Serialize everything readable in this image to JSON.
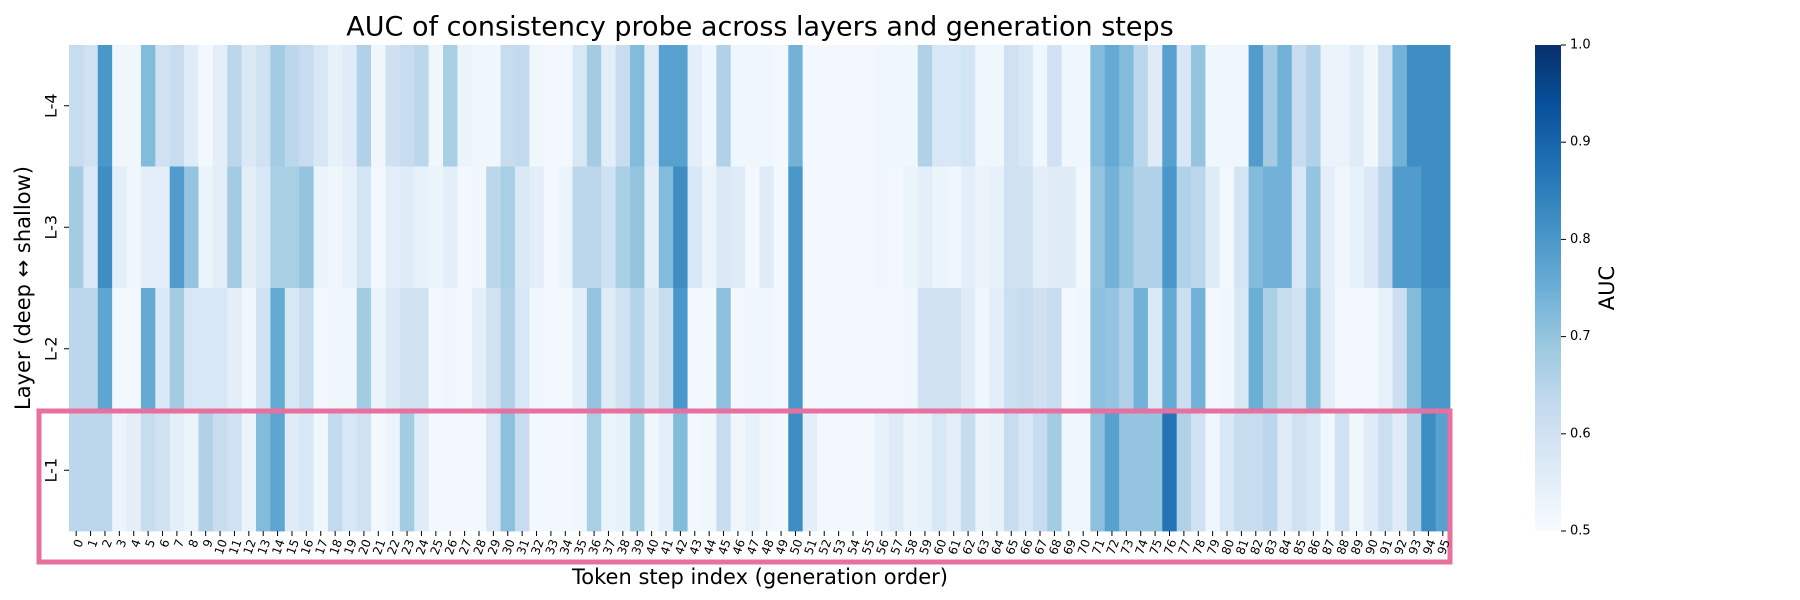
{
  "chart_data": {
    "type": "heatmap",
    "title": "AUC of consistency probe across layers and generation steps",
    "xlabel": "Token step index (generation order)",
    "ylabel": "Layer (deep ↔ shallow)",
    "colorbar_label": "AUC",
    "colormap": "Blues",
    "clim": [
      0.5,
      1.0
    ],
    "cticks": [
      0.5,
      0.6,
      0.7,
      0.8,
      0.9,
      {
        "value": 1,
        "label": "1.0"
      }
    ],
    "x_categories": [
      "0",
      "1",
      "2",
      "3",
      "4",
      "5",
      "6",
      "7",
      "8",
      "9",
      "10",
      "11",
      "12",
      "13",
      "14",
      "15",
      "16",
      "17",
      "18",
      "19",
      "20",
      "21",
      "22",
      "23",
      "24",
      "25",
      "26",
      "27",
      "28",
      "29",
      "30",
      "31",
      "32",
      "33",
      "34",
      "35",
      "36",
      "37",
      "38",
      "39",
      "40",
      "41",
      "42",
      "43",
      "44",
      "45",
      "46",
      "47",
      "48",
      "49",
      "50",
      "51",
      "52",
      "53",
      "54",
      "55",
      "56",
      "57",
      "58",
      "59",
      "60",
      "61",
      "62",
      "63",
      "64",
      "65",
      "66",
      "67",
      "68",
      "69",
      "70",
      "71",
      "72",
      "73",
      "74",
      "75",
      "76",
      "77",
      "78",
      "79",
      "80",
      "81",
      "82",
      "83",
      "84",
      "85",
      "86",
      "87",
      "88",
      "89",
      "90",
      "91",
      "92",
      "93",
      "94",
      "95"
    ],
    "y_categories": [
      "L-4",
      "L-3",
      "L-2",
      "L-1"
    ],
    "values": [
      [
        0.62,
        0.6,
        0.8,
        0.52,
        0.52,
        0.72,
        0.6,
        0.62,
        0.56,
        0.51,
        0.55,
        0.64,
        0.57,
        0.6,
        0.68,
        0.64,
        0.62,
        0.58,
        0.54,
        0.56,
        0.66,
        0.52,
        0.6,
        0.62,
        0.64,
        0.52,
        0.67,
        0.53,
        0.52,
        0.52,
        0.62,
        0.63,
        0.52,
        0.51,
        0.51,
        0.58,
        0.68,
        0.55,
        0.62,
        0.72,
        0.56,
        0.78,
        0.78,
        0.55,
        0.52,
        0.66,
        0.52,
        0.52,
        0.52,
        0.51,
        0.74,
        0.51,
        0.51,
        0.51,
        0.51,
        0.51,
        0.52,
        0.52,
        0.52,
        0.66,
        0.58,
        0.58,
        0.59,
        0.52,
        0.52,
        0.6,
        0.58,
        0.52,
        0.6,
        0.52,
        0.52,
        0.72,
        0.76,
        0.72,
        0.64,
        0.56,
        0.78,
        0.58,
        0.7,
        0.52,
        0.52,
        0.52,
        0.79,
        0.68,
        0.74,
        0.62,
        0.66,
        0.53,
        0.53,
        0.56,
        0.52,
        0.6,
        0.74,
        0.82,
        0.82,
        0.82
      ],
      [
        0.68,
        0.57,
        0.82,
        0.55,
        0.52,
        0.55,
        0.55,
        0.79,
        0.7,
        0.53,
        0.55,
        0.68,
        0.55,
        0.58,
        0.67,
        0.67,
        0.7,
        0.53,
        0.52,
        0.54,
        0.59,
        0.51,
        0.55,
        0.56,
        0.54,
        0.53,
        0.55,
        0.51,
        0.52,
        0.64,
        0.67,
        0.57,
        0.55,
        0.51,
        0.53,
        0.64,
        0.64,
        0.6,
        0.67,
        0.7,
        0.55,
        0.72,
        0.82,
        0.58,
        0.53,
        0.57,
        0.56,
        0.51,
        0.56,
        0.51,
        0.8,
        0.51,
        0.51,
        0.51,
        0.51,
        0.51,
        0.52,
        0.51,
        0.53,
        0.55,
        0.53,
        0.52,
        0.55,
        0.53,
        0.54,
        0.6,
        0.6,
        0.55,
        0.56,
        0.56,
        0.51,
        0.7,
        0.74,
        0.7,
        0.66,
        0.66,
        0.8,
        0.66,
        0.64,
        0.56,
        0.51,
        0.59,
        0.72,
        0.74,
        0.74,
        0.58,
        0.7,
        0.55,
        0.52,
        0.54,
        0.57,
        0.64,
        0.79,
        0.79,
        0.82,
        0.82
      ],
      [
        0.64,
        0.64,
        0.77,
        0.51,
        0.51,
        0.76,
        0.57,
        0.68,
        0.58,
        0.58,
        0.58,
        0.55,
        0.52,
        0.6,
        0.76,
        0.58,
        0.62,
        0.51,
        0.52,
        0.52,
        0.68,
        0.53,
        0.57,
        0.6,
        0.6,
        0.51,
        0.52,
        0.51,
        0.55,
        0.6,
        0.66,
        0.58,
        0.52,
        0.51,
        0.51,
        0.55,
        0.7,
        0.56,
        0.6,
        0.65,
        0.57,
        0.62,
        0.8,
        0.51,
        0.51,
        0.71,
        0.51,
        0.52,
        0.52,
        0.51,
        0.8,
        0.51,
        0.51,
        0.51,
        0.51,
        0.51,
        0.51,
        0.51,
        0.52,
        0.6,
        0.6,
        0.6,
        0.56,
        0.52,
        0.55,
        0.61,
        0.62,
        0.6,
        0.62,
        0.51,
        0.52,
        0.71,
        0.7,
        0.66,
        0.74,
        0.57,
        0.76,
        0.61,
        0.74,
        0.51,
        0.52,
        0.58,
        0.75,
        0.67,
        0.62,
        0.6,
        0.72,
        0.55,
        0.51,
        0.51,
        0.51,
        0.54,
        0.61,
        0.72,
        0.8,
        0.8
      ],
      [
        0.64,
        0.64,
        0.64,
        0.53,
        0.55,
        0.62,
        0.6,
        0.55,
        0.53,
        0.66,
        0.62,
        0.6,
        0.53,
        0.72,
        0.77,
        0.56,
        0.58,
        0.52,
        0.63,
        0.58,
        0.6,
        0.51,
        0.53,
        0.68,
        0.56,
        0.51,
        0.51,
        0.51,
        0.51,
        0.58,
        0.71,
        0.62,
        0.51,
        0.51,
        0.51,
        0.52,
        0.67,
        0.53,
        0.54,
        0.68,
        0.52,
        0.55,
        0.72,
        0.51,
        0.52,
        0.62,
        0.52,
        0.54,
        0.52,
        0.51,
        0.82,
        0.55,
        0.51,
        0.51,
        0.51,
        0.51,
        0.54,
        0.56,
        0.53,
        0.54,
        0.58,
        0.55,
        0.62,
        0.53,
        0.54,
        0.62,
        0.58,
        0.62,
        0.68,
        0.52,
        0.52,
        0.71,
        0.78,
        0.7,
        0.7,
        0.7,
        0.87,
        0.66,
        0.6,
        0.52,
        0.58,
        0.62,
        0.62,
        0.64,
        0.56,
        0.6,
        0.58,
        0.52,
        0.6,
        0.52,
        0.56,
        0.61,
        0.56,
        0.66,
        0.82,
        0.78
      ]
    ]
  }
}
